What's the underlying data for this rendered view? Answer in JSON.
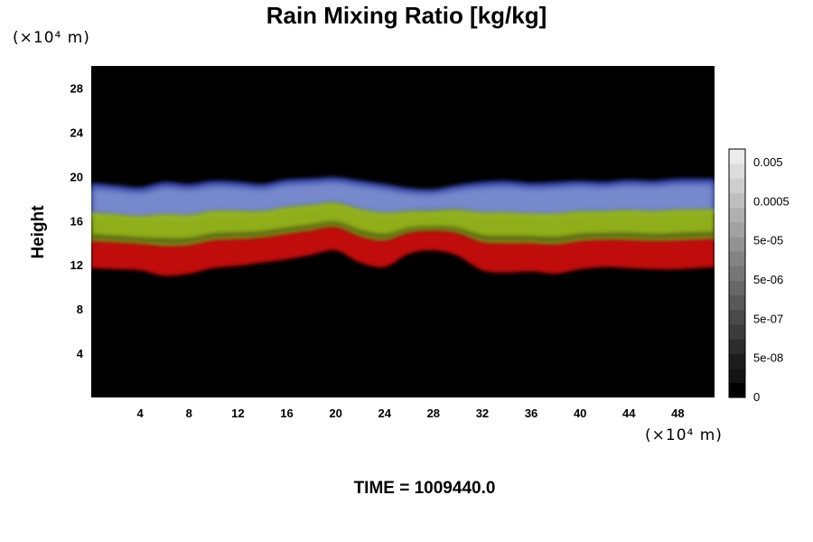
{
  "chart_data": {
    "type": "heatmap",
    "title": "Rain Mixing Ratio [kg/kg]",
    "ylabel": "Height",
    "y_unit": "(×10⁴ m)",
    "x_unit": "(×10⁴ m)",
    "xlim": [
      0,
      51
    ],
    "ylim": [
      0,
      30
    ],
    "x_ticks": [
      4,
      8,
      12,
      16,
      20,
      24,
      28,
      32,
      36,
      40,
      44,
      48
    ],
    "y_ticks": [
      4,
      8,
      12,
      16,
      20,
      24,
      28
    ],
    "colorbar": {
      "tick_labels": [
        "0.005",
        "0.0005",
        "5e-05",
        "5e-06",
        "5e-07",
        "5e-08",
        "0"
      ],
      "levels": 17
    },
    "band": {
      "x": [
        0,
        2,
        4,
        6,
        8,
        10,
        12,
        14,
        16,
        18,
        20,
        22,
        24,
        26,
        28,
        30,
        32,
        34,
        36,
        38,
        40,
        42,
        44,
        46,
        48,
        51
      ],
      "top_height": [
        19.4,
        19.2,
        19.0,
        19.5,
        19.3,
        19.6,
        19.5,
        19.3,
        19.7,
        19.8,
        19.9,
        19.6,
        19.3,
        18.9,
        18.8,
        19.2,
        19.5,
        19.6,
        19.4,
        19.5,
        19.6,
        19.5,
        19.7,
        19.6,
        19.8,
        19.8
      ],
      "bottom_height": [
        11.7,
        11.6,
        11.5,
        11.0,
        11.2,
        11.7,
        11.9,
        12.2,
        12.5,
        12.9,
        13.3,
        12.2,
        11.8,
        13.0,
        13.3,
        12.8,
        11.5,
        11.3,
        11.4,
        11.2,
        11.6,
        11.8,
        11.7,
        11.6,
        11.6,
        11.8
      ]
    },
    "series": [
      {
        "color": "#7c8fd0"
      },
      {
        "color": "#98b81c"
      },
      {
        "color": "#c80a0a"
      }
    ],
    "colors": {
      "background": "#000000",
      "deep_blue": "#1a2aa0"
    }
  },
  "footer": {
    "time_prefix": "TIME = ",
    "time_value": "1009440.0"
  }
}
